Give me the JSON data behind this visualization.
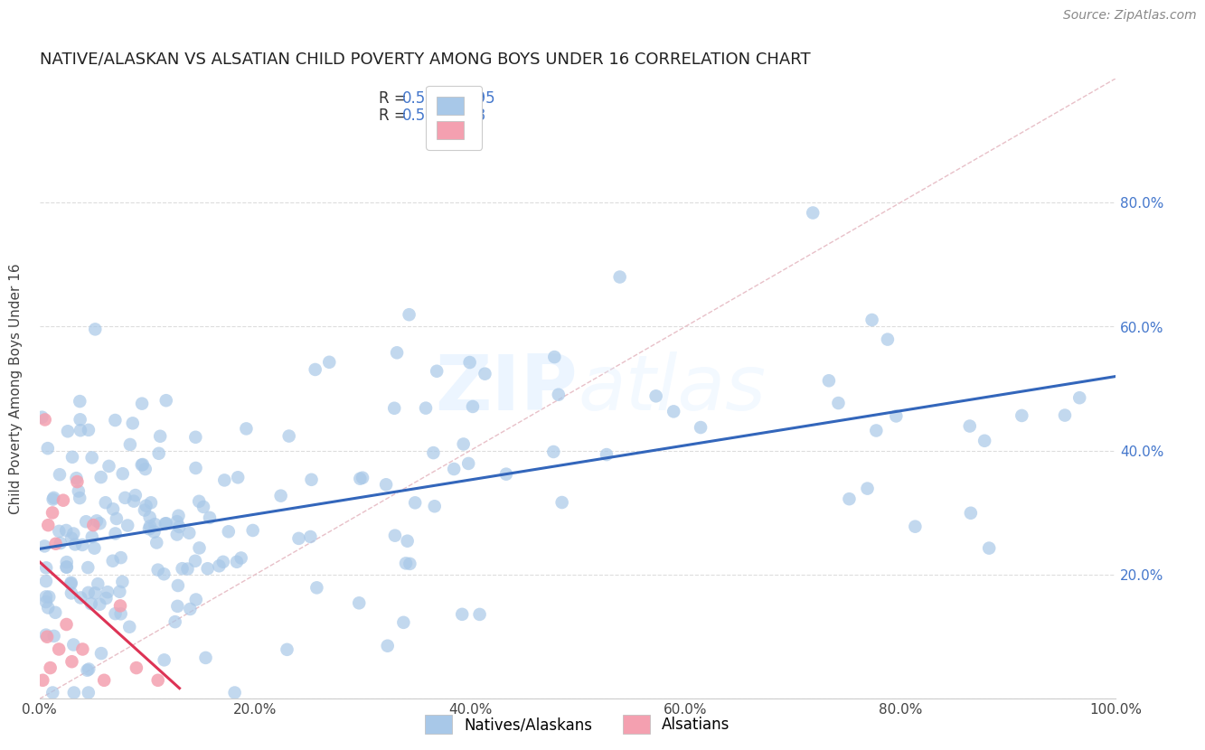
{
  "title": "NATIVE/ALASKAN VS ALSATIAN CHILD POVERTY AMONG BOYS UNDER 16 CORRELATION CHART",
  "source": "Source: ZipAtlas.com",
  "ylabel": "Child Poverty Among Boys Under 16",
  "xlim": [
    0.0,
    1.0
  ],
  "ylim": [
    0.0,
    1.0
  ],
  "xtick_labels": [
    "0.0%",
    "",
    "",
    "",
    "",
    "20.0%",
    "",
    "",
    "",
    "",
    "40.0%",
    "",
    "",
    "",
    "",
    "60.0%",
    "",
    "",
    "",
    "",
    "80.0%",
    "",
    "",
    "",
    "",
    "100.0%"
  ],
  "ytick_labels_right": [
    "20.0%",
    "40.0%",
    "60.0%",
    "80.0%"
  ],
  "native_R": 0.569,
  "native_N": 195,
  "alsatian_R": 0.54,
  "alsatian_N": 18,
  "native_color": "#a8c8e8",
  "alsatian_color": "#f4a0b0",
  "native_line_color": "#3366bb",
  "alsatian_line_color": "#dd3355",
  "diagonal_color": "#e8c0c8",
  "watermark": "ZIPatlas",
  "background_color": "#ffffff",
  "grid_color": "#dddddd",
  "title_fontsize": 13,
  "label_fontsize": 11,
  "tick_fontsize": 11,
  "legend_fontsize": 12,
  "right_tick_color": "#4477cc"
}
